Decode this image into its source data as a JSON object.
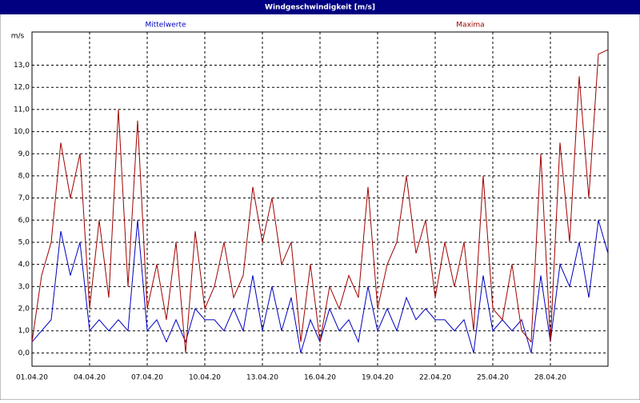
{
  "chart_data": {
    "type": "line",
    "title": "Windgeschwindigkeit [m/s]",
    "y_label": "m/s",
    "x": [
      0,
      0.5,
      1,
      1.5,
      2,
      2.5,
      3,
      3.5,
      4,
      4.5,
      5,
      5.5,
      6,
      6.5,
      7,
      7.5,
      8,
      8.5,
      9,
      9.5,
      10,
      10.5,
      11,
      11.5,
      12,
      12.5,
      13,
      13.5,
      14,
      14.5,
      15,
      15.5,
      16,
      16.5,
      17,
      17.5,
      18,
      18.5,
      19,
      19.5,
      20,
      20.5,
      21,
      21.5,
      22,
      22.5,
      23,
      23.5,
      24,
      24.5,
      25,
      25.5,
      26,
      26.5,
      27,
      27.5,
      28,
      28.5,
      29,
      29.5,
      30
    ],
    "series": [
      {
        "name": "Mittelwerte",
        "color": "#0000c0",
        "values": [
          0.5,
          1,
          1.5,
          5.5,
          3.5,
          5,
          1,
          1.5,
          1,
          1.5,
          1,
          6,
          1,
          1.5,
          0.5,
          1.5,
          0.5,
          2,
          1.5,
          1.5,
          1,
          2,
          1,
          3.5,
          1,
          3,
          1,
          2.5,
          0,
          1.5,
          0.5,
          2,
          1,
          1.5,
          0.5,
          3,
          1,
          2,
          1,
          2.5,
          1.5,
          2,
          1.5,
          1.5,
          1,
          1.5,
          0,
          3.5,
          1,
          1.5,
          1,
          1.5,
          0,
          3.5,
          0.5,
          4,
          3,
          5,
          2.5,
          6,
          4.5
        ]
      },
      {
        "name": "Maxima",
        "color": "#a00000",
        "values": [
          0.5,
          3.5,
          5,
          9.5,
          7,
          9,
          2,
          6,
          2.5,
          11,
          3,
          10.5,
          2,
          4,
          1.5,
          5,
          0,
          5.5,
          2,
          3,
          5,
          2.5,
          3.5,
          7.5,
          5,
          7,
          4,
          5,
          0.5,
          4,
          0.5,
          3,
          2,
          3.5,
          2.5,
          7.5,
          2,
          4,
          5,
          8,
          4.5,
          6,
          2.5,
          5,
          3,
          5,
          1,
          8,
          2,
          1.5,
          4,
          1,
          0.5,
          9,
          0.5,
          9.5,
          5,
          12.5,
          7,
          13.5,
          13.7
        ]
      }
    ],
    "xlim": [
      0,
      30
    ],
    "xticks": [
      {
        "value": 0,
        "label": "01.04.20"
      },
      {
        "value": 3,
        "label": "04.04.20"
      },
      {
        "value": 6,
        "label": "07.04.20"
      },
      {
        "value": 9,
        "label": "10.04.20"
      },
      {
        "value": 12,
        "label": "13.04.20"
      },
      {
        "value": 15,
        "label": "16.04.20"
      },
      {
        "value": 18,
        "label": "19.04.20"
      },
      {
        "value": 21,
        "label": "22.04.20"
      },
      {
        "value": 24,
        "label": "25.04.20"
      },
      {
        "value": 27,
        "label": "28.04.20"
      }
    ],
    "ylim": [
      -0.6,
      14.5
    ],
    "yticks": [
      {
        "value": 0,
        "label": "0,0"
      },
      {
        "value": 1,
        "label": "1,0"
      },
      {
        "value": 2,
        "label": "2,0"
      },
      {
        "value": 3,
        "label": "3,0"
      },
      {
        "value": 4,
        "label": "4,0"
      },
      {
        "value": 5,
        "label": "5,0"
      },
      {
        "value": 6,
        "label": "6,0"
      },
      {
        "value": 7,
        "label": "7,0"
      },
      {
        "value": 8,
        "label": "8,0"
      },
      {
        "value": 9,
        "label": "9,0"
      },
      {
        "value": 10,
        "label": "10,0"
      },
      {
        "value": 11,
        "label": "11,0"
      },
      {
        "value": 12,
        "label": "12,0"
      },
      {
        "value": 13,
        "label": "13,0"
      }
    ],
    "grid": true
  }
}
